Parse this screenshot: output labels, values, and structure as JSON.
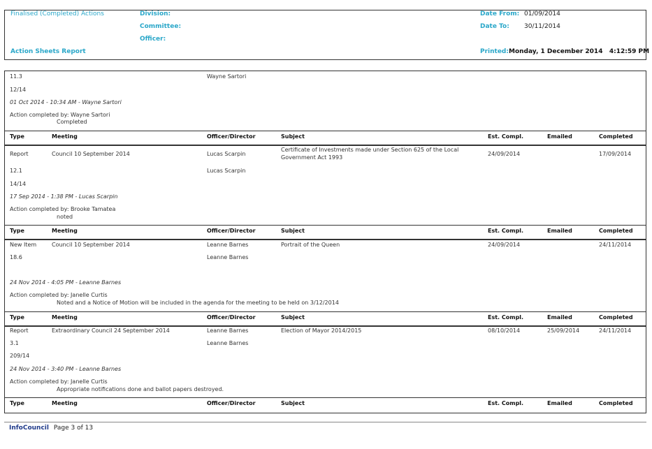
{
  "header": {
    "title": "Finalised (Completed) Actions",
    "report_name": "Action Sheets Report",
    "division_label": "Division:",
    "committee_label": "Committee:",
    "officer_label": "Officer:",
    "date_from_label": "Date From:",
    "date_from": "01/09/2014",
    "date_to_label": "Date To:",
    "date_to": "30/11/2014",
    "printed_label": "Printed:",
    "printed_value": "Monday, 1 December 2014   4:12:59 PM"
  },
  "columns": [
    "Type",
    "Meeting",
    "Officer/Director",
    "Subject",
    "Est. Compl.",
    "Emailed",
    "Completed"
  ],
  "section0": {
    "item": "11.3",
    "officer": "Wayne Sartori",
    "number": "12/14",
    "log": "01 Oct 2014 - 10:34 AM - Wayne Sartori",
    "completed_by": "Action completed by: Wayne Sartori",
    "note": "Completed"
  },
  "records": [
    {
      "type": "Report",
      "meeting": "Council 10 September 2014",
      "officer": "Lucas Scarpin",
      "subject": "Certificate of Investments made under Section 625 of the Local",
      "subject2": "Government Act 1993",
      "est": "24/09/2014",
      "emailed": "",
      "completed": "17/09/2014",
      "item": "12.1",
      "officer2": "Lucas Scarpin",
      "number": "14/14",
      "log": "17 Sep 2014 - 1:38 PM - Lucas Scarpin",
      "completed_by": "Action completed by: Brooke Tamatea",
      "note": "noted"
    },
    {
      "type": "New Item",
      "meeting": "Council 10 September 2014",
      "officer": "Leanne Barnes",
      "subject": "Portrait of the Queen",
      "subject2": "",
      "est": "24/09/2014",
      "emailed": "",
      "completed": "24/11/2014",
      "item": "18.6",
      "officer2": "Leanne Barnes",
      "number": "",
      "log": "24 Nov 2014 - 4:05 PM - Leanne Barnes",
      "completed_by": "Action completed by: Janelle Curtis",
      "note": "Noted and a Notice of Motion will be included in the agenda for the meeting to be held on 3/12/2014"
    },
    {
      "type": "Report",
      "meeting": "Extraordinary Council 24 September 2014",
      "officer": "Leanne Barnes",
      "subject": "Election of Mayor 2014/2015",
      "subject2": "",
      "est": "08/10/2014",
      "emailed": "25/09/2014",
      "completed": "24/11/2014",
      "item": "3.1",
      "officer2": "Leanne Barnes",
      "number": "209/14",
      "log": "24 Nov 2014 - 3:40 PM - Leanne Barnes",
      "completed_by": "Action completed by: Janelle Curtis",
      "note": "Appropriate notifications done and ballot papers destroyed."
    }
  ],
  "footer": {
    "brand": "InfoCouncil",
    "page": "Page 3 of 13"
  }
}
